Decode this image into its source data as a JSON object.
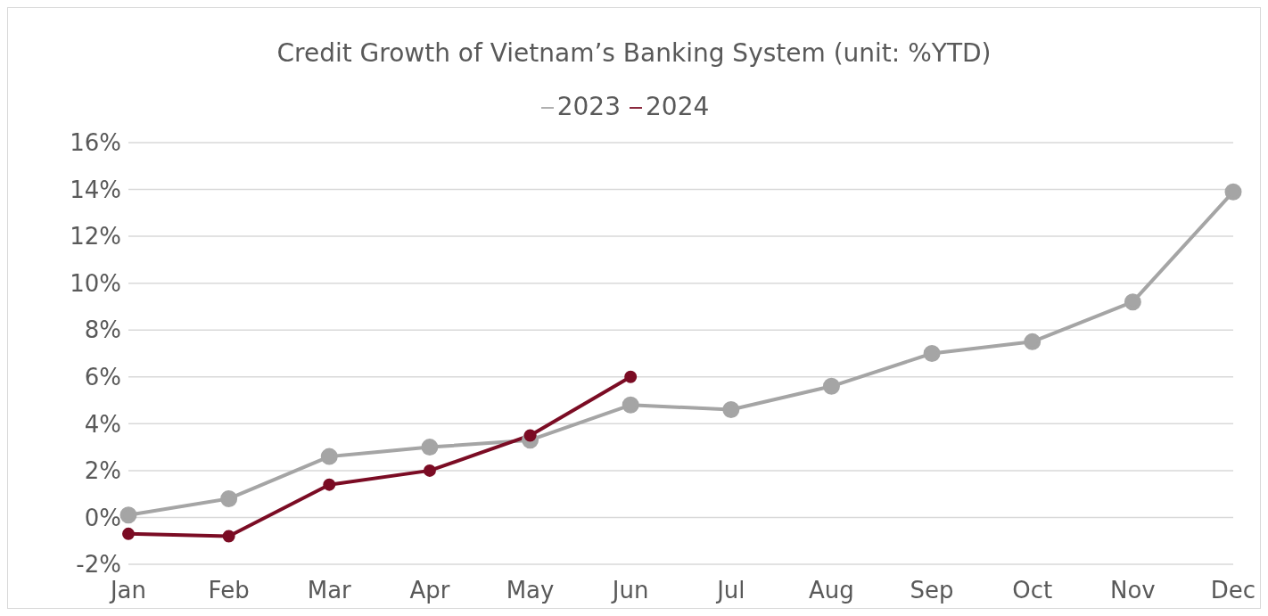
{
  "chart_data": {
    "type": "line",
    "title": "Credit Growth of Vietnam’s Banking System (unit: %YTD)",
    "categories": [
      "Jan",
      "Feb",
      "Mar",
      "Apr",
      "May",
      "Jun",
      "Jul",
      "Aug",
      "Sep",
      "Oct",
      "Nov",
      "Dec"
    ],
    "series": [
      {
        "name": "2023",
        "color": "#a5a5a5",
        "values": [
          0.1,
          0.8,
          2.6,
          3.0,
          3.3,
          4.8,
          4.6,
          5.6,
          7.0,
          7.5,
          9.2,
          13.9
        ]
      },
      {
        "name": "2024",
        "color": "#7b0c24",
        "values": [
          -0.7,
          -0.8,
          1.4,
          2.0,
          3.5,
          6.0,
          null,
          null,
          null,
          null,
          null,
          null
        ]
      }
    ],
    "ylim": [
      -2,
      16
    ],
    "yticks": [
      {
        "value": -2,
        "label": "-2%"
      },
      {
        "value": 0,
        "label": "0%"
      },
      {
        "value": 2,
        "label": "2%"
      },
      {
        "value": 4,
        "label": "4%"
      },
      {
        "value": 6,
        "label": "6%"
      },
      {
        "value": 8,
        "label": "8%"
      },
      {
        "value": 10,
        "label": "10%"
      },
      {
        "value": 12,
        "label": "12%"
      },
      {
        "value": 14,
        "label": "14%"
      },
      {
        "value": 16,
        "label": "16%"
      }
    ],
    "grid": "y",
    "legend": "top",
    "marker": "circle",
    "line_style": "solid"
  }
}
